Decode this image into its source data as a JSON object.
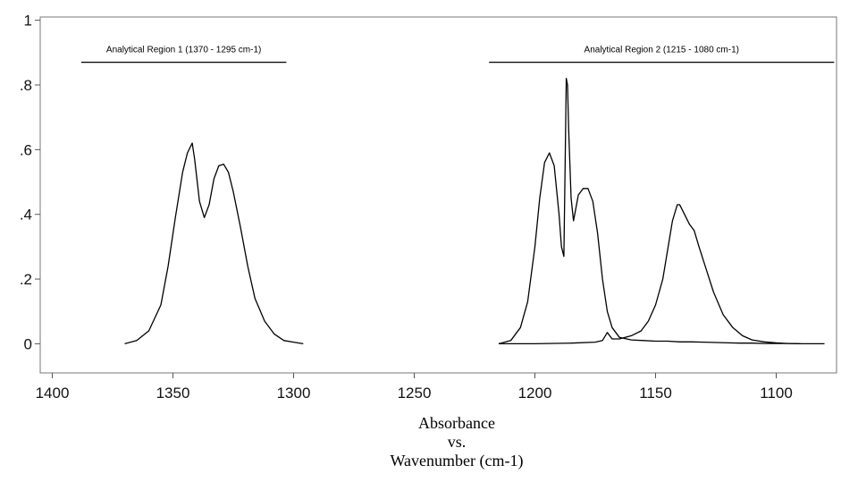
{
  "chart_data": {
    "type": "line",
    "title": "",
    "xlabel_lines": [
      "Absorbance",
      "vs.",
      "Wavenumber (cm-1)"
    ],
    "ylabel": "",
    "xlim": [
      1405,
      1075
    ],
    "ylim": [
      -0.09,
      1.01
    ],
    "x_reversed": true,
    "grid": false,
    "x_ticks": [
      1400,
      1350,
      1300,
      1250,
      1200,
      1150,
      1100
    ],
    "x_tick_labels": [
      "1400",
      "1350",
      "1300",
      "1250",
      "1200",
      "1150",
      "1100"
    ],
    "y_ticks": [
      0,
      0.2,
      0.4,
      0.6,
      0.8,
      1.0
    ],
    "y_tick_labels": [
      "0",
      ".2",
      ".4",
      ".6",
      ".8",
      "1"
    ],
    "regions": [
      {
        "label": "Analytical Region 1  (1370 - 1295 cm-1)",
        "x_start": 1388,
        "x_end": 1303,
        "y": 0.87
      },
      {
        "label": "Analytical Region 2  (1215 - 1080 cm-1)",
        "x_start": 1219,
        "x_end": 1076,
        "y": 0.87
      }
    ],
    "series": [
      {
        "x": [
          1370,
          1365,
          1360,
          1355,
          1352,
          1349,
          1346,
          1344,
          1342,
          1341,
          1339,
          1337,
          1335,
          1333,
          1331,
          1329,
          1327,
          1325,
          1322,
          1319,
          1316,
          1312,
          1308,
          1304,
          1300,
          1296
        ],
        "y": [
          0.0,
          0.01,
          0.04,
          0.12,
          0.24,
          0.39,
          0.53,
          0.59,
          0.62,
          0.57,
          0.44,
          0.39,
          0.43,
          0.51,
          0.55,
          0.555,
          0.53,
          0.47,
          0.36,
          0.24,
          0.14,
          0.07,
          0.03,
          0.01,
          0.005,
          0.0
        ]
      },
      {
        "x": [
          1215,
          1210,
          1206,
          1203,
          1200,
          1198,
          1196,
          1194,
          1192,
          1190,
          1189,
          1188,
          1187.5,
          1187,
          1186.5,
          1186,
          1185,
          1184,
          1183,
          1182,
          1180,
          1178,
          1176,
          1174,
          1172,
          1170,
          1168,
          1165,
          1160,
          1155,
          1150,
          1145,
          1140,
          1135,
          1130,
          1125,
          1120,
          1115,
          1110,
          1105,
          1100,
          1095,
          1090,
          1085,
          1080
        ],
        "y": [
          0.0,
          0.01,
          0.05,
          0.13,
          0.3,
          0.45,
          0.56,
          0.59,
          0.55,
          0.4,
          0.3,
          0.27,
          0.55,
          0.82,
          0.8,
          0.66,
          0.45,
          0.38,
          0.42,
          0.46,
          0.48,
          0.48,
          0.44,
          0.34,
          0.2,
          0.1,
          0.05,
          0.02,
          0.012,
          0.01,
          0.008,
          0.008,
          0.006,
          0.006,
          0.005,
          0.004,
          0.003,
          0.002,
          0.002,
          0.001,
          0.001,
          0.001,
          0.0,
          0.0,
          0.0
        ]
      },
      {
        "x": [
          1215,
          1200,
          1185,
          1175,
          1172,
          1170,
          1168,
          1165,
          1160,
          1156,
          1153,
          1150,
          1147,
          1145,
          1143,
          1141,
          1140,
          1138,
          1136,
          1134,
          1132,
          1129,
          1126,
          1122,
          1118,
          1114,
          1110,
          1105,
          1100,
          1095,
          1090
        ],
        "y": [
          0.0,
          0.0,
          0.002,
          0.005,
          0.01,
          0.035,
          0.015,
          0.015,
          0.025,
          0.04,
          0.07,
          0.12,
          0.2,
          0.29,
          0.38,
          0.43,
          0.43,
          0.4,
          0.37,
          0.35,
          0.3,
          0.23,
          0.16,
          0.09,
          0.05,
          0.025,
          0.012,
          0.006,
          0.003,
          0.001,
          0.0
        ]
      }
    ]
  }
}
